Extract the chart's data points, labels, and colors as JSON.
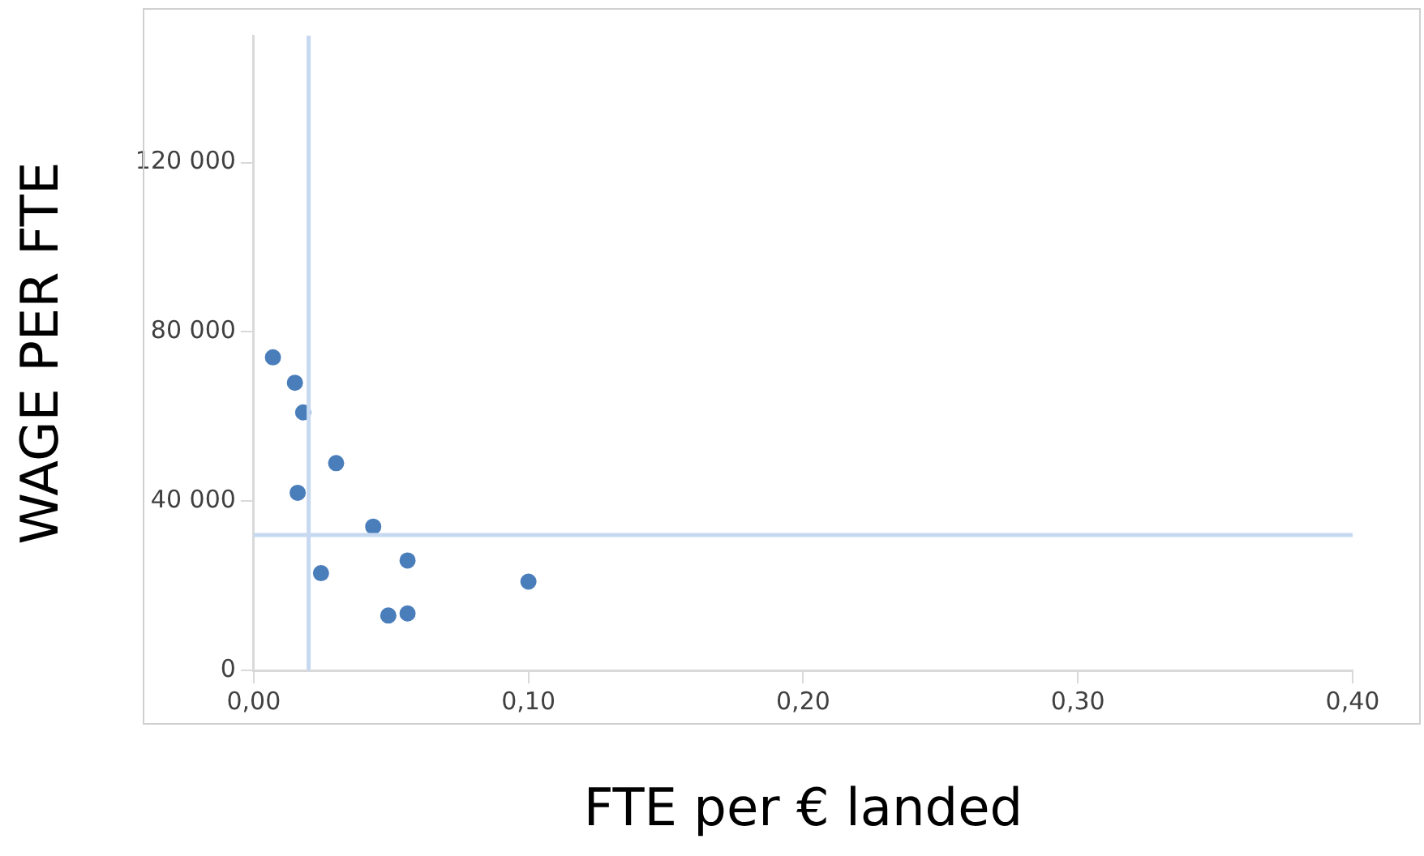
{
  "chart_data": {
    "type": "scatter",
    "xlabel": "FTE per € landed",
    "ylabel": "WAGE PER FTE",
    "x": [
      0.007,
      0.015,
      0.018,
      0.03,
      0.016,
      0.0435,
      0.056,
      0.0245,
      0.1,
      0.049,
      0.056
    ],
    "series": [
      {
        "color": "#4a7ebb",
        "values": [
          74000,
          68000,
          61000,
          49000,
          42000,
          34000,
          26000,
          23000,
          21000,
          13000,
          13500
        ]
      }
    ],
    "xlim": [
      0,
      0.4
    ],
    "ylim": [
      0,
      150000
    ],
    "xticks": [
      {
        "value": 0,
        "label": "0,00"
      },
      {
        "value": 0.1,
        "label": "0,10"
      },
      {
        "value": 0.2,
        "label": "0,20"
      },
      {
        "value": 0.3,
        "label": "0,30"
      },
      {
        "value": 0.4,
        "label": "0,40"
      }
    ],
    "yticks": [
      0,
      {
        "value": 40000,
        "label": "40 000"
      },
      {
        "value": 80000,
        "label": "80 000"
      },
      {
        "value": 120000,
        "label": "120 000"
      }
    ],
    "ref_lines": [
      {
        "axis": "x",
        "value": 0.02,
        "color": "#c6d9f1"
      },
      {
        "axis": "y",
        "value": 32000,
        "color": "#c6d9f1"
      }
    ],
    "marker": "circle",
    "grid": false,
    "legend": false
  }
}
